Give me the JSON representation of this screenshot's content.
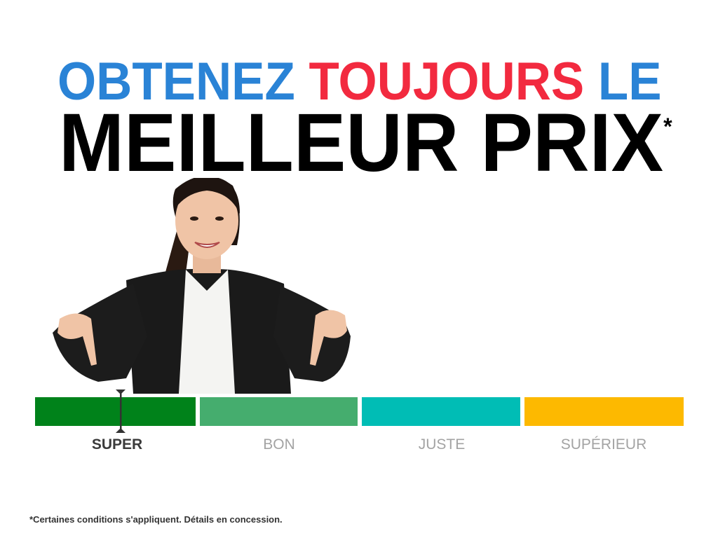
{
  "headline": {
    "line1_part1": "OBTENEZ",
    "line1_part2": "TOUJOURS",
    "line1_part3": "LE",
    "line2": "MEILLEUR PRIX",
    "asterisk": "*"
  },
  "colors": {
    "blue": "#2a83d6",
    "red": "#f22a3f",
    "black": "#000000"
  },
  "price_scale": {
    "selected": "SUPER",
    "segments": [
      {
        "label": "SUPER",
        "color": "#00821a"
      },
      {
        "label": "BON",
        "color": "#45ad6e"
      },
      {
        "label": "JUSTE",
        "color": "#00bdb5"
      },
      {
        "label": "SUPÉRIEUR",
        "color": "#fdb900"
      }
    ]
  },
  "photo": {
    "icon": "woman-pointing-down-photo"
  },
  "footnote": "*Certaines conditions s'appliquent. Détails en concession."
}
